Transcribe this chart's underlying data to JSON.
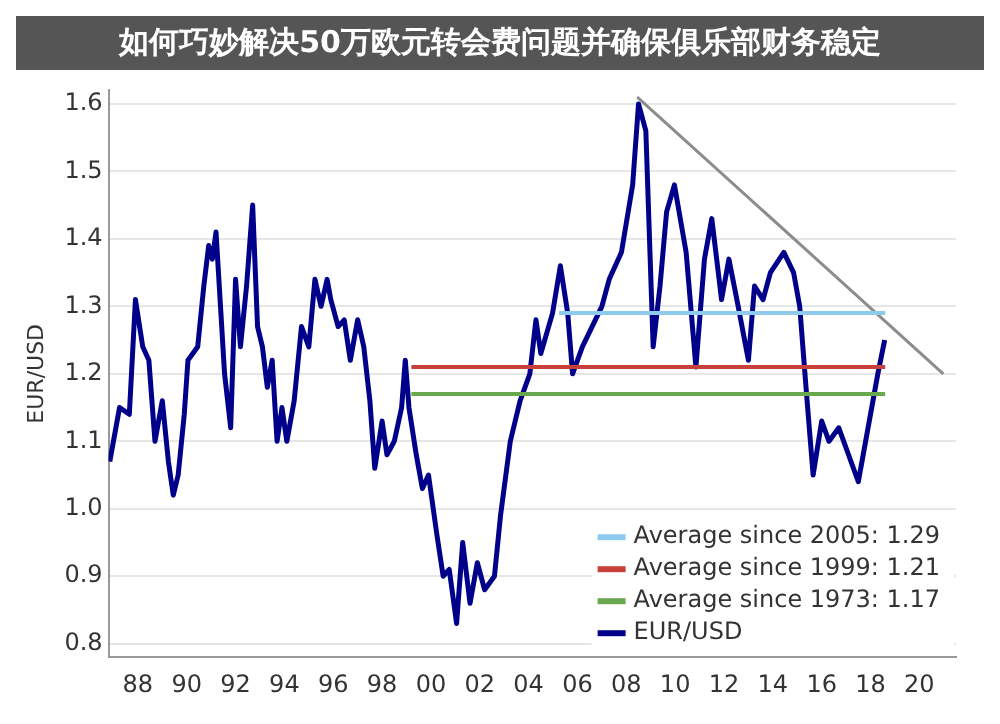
{
  "chart_data": {
    "type": "line",
    "title": "如何巧妙解决50万欧元转会费问题并确保俱乐部财务稳定",
    "ylabel": "EUR/USD",
    "xlim": [
      1986.8,
      2021.5
    ],
    "ylim": [
      0.78,
      1.62
    ],
    "xticks": [
      {
        "value": 1988,
        "label": "88"
      },
      {
        "value": 1990,
        "label": "90"
      },
      {
        "value": 1992,
        "label": "92"
      },
      {
        "value": 1994,
        "label": "94"
      },
      {
        "value": 1996,
        "label": "96"
      },
      {
        "value": 1998,
        "label": "98"
      },
      {
        "value": 2000,
        "label": "00"
      },
      {
        "value": 2002,
        "label": "02"
      },
      {
        "value": 2004,
        "label": "04"
      },
      {
        "value": 2006,
        "label": "06"
      },
      {
        "value": 2008,
        "label": "08"
      },
      {
        "value": 2010,
        "label": "10"
      },
      {
        "value": 2012,
        "label": "12"
      },
      {
        "value": 2014,
        "label": "14"
      },
      {
        "value": 2016,
        "label": "16"
      },
      {
        "value": 2018,
        "label": "18"
      },
      {
        "value": 2020,
        "label": "20"
      }
    ],
    "yticks": [
      0.8,
      0.9,
      {
        "value": 1.0,
        "label": "1.0"
      },
      1.1,
      1.2,
      1.3,
      1.4,
      1.5,
      1.6
    ],
    "grid": "y",
    "legend": "bottom right",
    "marker": "none",
    "line_style": "solid",
    "series": [
      {
        "name": "Average since 2005: 1.29",
        "color": "#8ec9ee",
        "x": [
          2005.25,
          2018.6
        ],
        "values": [
          1.29,
          1.29
        ]
      },
      {
        "name": "Average since 1999: 1.21",
        "color": "#c8403a",
        "x": [
          1999.2,
          2018.6
        ],
        "values": [
          1.21,
          1.21
        ]
      },
      {
        "name": "Average since 1973: 1.17",
        "color": "#6aa84f",
        "x": [
          1999.2,
          2018.6
        ],
        "values": [
          1.17,
          1.17
        ]
      },
      {
        "name": "EUR/USD",
        "color": "#00008b",
        "x": [
          1986.85,
          1987.25,
          1987.65,
          1987.9,
          1988.2,
          1988.45,
          1988.7,
          1989.0,
          1989.25,
          1989.45,
          1989.65,
          1989.9,
          1990.05,
          1990.45,
          1990.7,
          1990.9,
          1991.05,
          1991.2,
          1991.4,
          1991.55,
          1991.8,
          1992.0,
          1992.2,
          1992.45,
          1992.7,
          1992.9,
          1993.1,
          1993.3,
          1993.5,
          1993.7,
          1993.9,
          1994.1,
          1994.4,
          1994.7,
          1995.0,
          1995.25,
          1995.5,
          1995.75,
          1995.9,
          1996.2,
          1996.45,
          1996.7,
          1997.0,
          1997.25,
          1997.5,
          1997.7,
          1998.0,
          1998.2,
          1998.5,
          1998.8,
          1998.95,
          1999.1,
          1999.4,
          1999.65,
          1999.9,
          2000.25,
          2000.5,
          2000.75,
          2001.05,
          2001.3,
          2001.6,
          2001.9,
          2002.2,
          2002.6,
          2002.85,
          2003.25,
          2003.65,
          2004.05,
          2004.3,
          2004.5,
          2004.98,
          2005.3,
          2005.6,
          2005.8,
          2006.2,
          2006.6,
          2007.0,
          2007.3,
          2007.8,
          2008.26,
          2008.5,
          2008.8,
          2009.1,
          2009.38,
          2009.65,
          2009.97,
          2010.45,
          2010.85,
          2011.2,
          2011.5,
          2011.9,
          2012.2,
          2012.58,
          2013.0,
          2013.25,
          2013.6,
          2013.9,
          2014.45,
          2014.85,
          2015.1,
          2015.38,
          2015.65,
          2016.0,
          2016.3,
          2016.7,
          2017.1,
          2017.5,
          2017.9,
          2018.3,
          2018.58
        ],
        "values": [
          1.07,
          1.15,
          1.14,
          1.31,
          1.24,
          1.22,
          1.1,
          1.16,
          1.07,
          1.02,
          1.05,
          1.14,
          1.22,
          1.24,
          1.33,
          1.39,
          1.37,
          1.41,
          1.29,
          1.2,
          1.12,
          1.34,
          1.24,
          1.33,
          1.45,
          1.27,
          1.24,
          1.18,
          1.22,
          1.1,
          1.15,
          1.1,
          1.16,
          1.27,
          1.24,
          1.34,
          1.3,
          1.34,
          1.31,
          1.27,
          1.28,
          1.22,
          1.28,
          1.24,
          1.16,
          1.06,
          1.13,
          1.08,
          1.1,
          1.15,
          1.22,
          1.15,
          1.08,
          1.03,
          1.05,
          0.96,
          0.9,
          0.91,
          0.83,
          0.95,
          0.86,
          0.92,
          0.88,
          0.9,
          0.99,
          1.1,
          1.16,
          1.2,
          1.28,
          1.23,
          1.29,
          1.36,
          1.29,
          1.2,
          1.24,
          1.27,
          1.3,
          1.34,
          1.38,
          1.48,
          1.6,
          1.56,
          1.24,
          1.33,
          1.44,
          1.48,
          1.38,
          1.21,
          1.37,
          1.43,
          1.31,
          1.37,
          1.3,
          1.22,
          1.33,
          1.31,
          1.35,
          1.38,
          1.35,
          1.3,
          1.17,
          1.05,
          1.13,
          1.1,
          1.12,
          1.08,
          1.04,
          1.12,
          1.2,
          1.25
        ]
      },
      {
        "color": "#8c8c8c",
        "x": [
          2008.45,
          2020.98
        ],
        "values": [
          1.61,
          1.2
        ]
      }
    ]
  }
}
